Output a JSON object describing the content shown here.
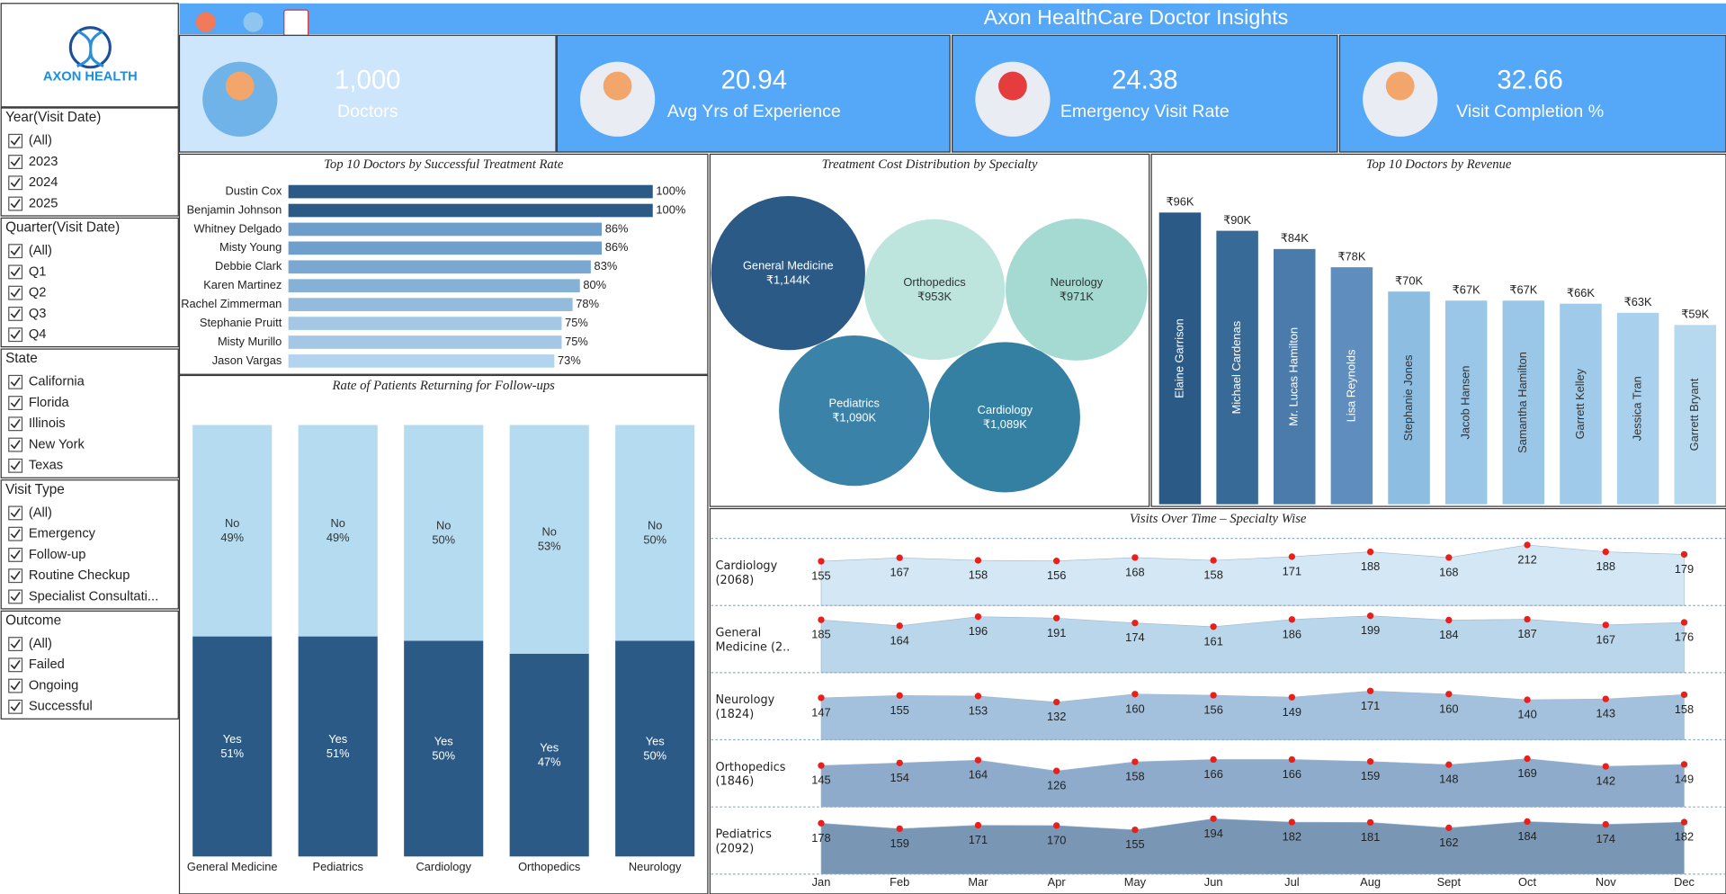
{
  "logo": {
    "text": "AXON HEALTH"
  },
  "header": {
    "title": "Axon HealthCare Doctor Insights"
  },
  "filters": [
    {
      "title": "Year(Visit Date)",
      "options": [
        "(All)",
        "2023",
        "2024",
        "2025"
      ]
    },
    {
      "title": "Quarter(Visit Date)",
      "options": [
        "(All)",
        "Q1",
        "Q2",
        "Q3",
        "Q4"
      ]
    },
    {
      "title": "State",
      "options": [
        "California",
        "Florida",
        "Illinois",
        "New York",
        "Texas"
      ]
    },
    {
      "title": "Visit Type",
      "options": [
        "(All)",
        "Emergency",
        "Follow-up",
        "Routine Checkup",
        "Specialist Consultati..."
      ]
    },
    {
      "title": "Outcome",
      "options": [
        "(All)",
        "Failed",
        "Ongoing",
        "Successful"
      ]
    }
  ],
  "kpis": [
    {
      "value": "1,000",
      "label": "Doctors"
    },
    {
      "value": "20.94",
      "label": "Avg Yrs of Experience"
    },
    {
      "value": "24.38",
      "label": "Emergency Visit Rate"
    },
    {
      "value": "32.66",
      "label": "Visit Completion %"
    }
  ],
  "chart_data": [
    {
      "type": "hbar",
      "title": "Top 10 Doctors by Successful Treatment Rate",
      "categories": [
        "Dustin Cox",
        "Benjamin Johnson",
        "Whitney Delgado",
        "Misty Young",
        "Debbie Clark",
        "Karen Martinez",
        "Rachel Zimmerman",
        "Stephanie Pruitt",
        "Misty Murillo",
        "Jason Vargas"
      ],
      "values": [
        100,
        100,
        86,
        86,
        83,
        80,
        78,
        75,
        75,
        73
      ],
      "value_labels": [
        "100%",
        "100%",
        "86%",
        "86%",
        "83%",
        "80%",
        "78%",
        "75%",
        "75%",
        "73%"
      ],
      "colors": [
        "#2b5a87",
        "#2b5a87",
        "#6d9ecb",
        "#6f9fcc",
        "#7aa8d1",
        "#86b1d7",
        "#93bbdd",
        "#a3c7e5",
        "#a3c7e5",
        "#b3d4ee"
      ]
    },
    {
      "type": "bubble",
      "title": "Treatment Cost Distribution by Specialty",
      "categories": [
        "General Medicine",
        "Orthopedics",
        "Neurology",
        "Pediatrics",
        "Cardiology"
      ],
      "values": [
        1144,
        953,
        971,
        1090,
        1089
      ],
      "value_labels": [
        "₹1,144K",
        "₹953K",
        "₹971K",
        "₹1,090K",
        "₹1,089K"
      ],
      "colors": [
        "#2b5a87",
        "#bde5de",
        "#a5dad3",
        "#3a82a8",
        "#3480a3"
      ]
    },
    {
      "type": "bar",
      "title": "Top 10 Doctors by Revenue",
      "categories": [
        "Elaine Garrison",
        "Michael Cardenas",
        "Mr. Lucas Hamilton",
        "Lisa Reynolds",
        "Stephanie Jones",
        "Jacob Hansen",
        "Samantha Hamilton",
        "Garrett Kelley",
        "Jessica Tran",
        "Garrett Bryant"
      ],
      "values": [
        96,
        90,
        84,
        78,
        70,
        67,
        67,
        66,
        63,
        59
      ],
      "value_labels": [
        "₹96K",
        "₹90K",
        "₹84K",
        "₹78K",
        "₹70K",
        "₹67K",
        "₹67K",
        "₹66K",
        "₹63K",
        "₹59K"
      ],
      "colors": [
        "#2b5a87",
        "#386a98",
        "#4a7bab",
        "#5f8dbd",
        "#8ebde2",
        "#9ac6e7",
        "#9ac6e7",
        "#a0cae9",
        "#a9d0ec",
        "#b6d9f0"
      ]
    },
    {
      "type": "stacked_bar",
      "title": "Rate of Patients Returning for Follow-ups",
      "categories": [
        "General Medicine",
        "Pediatrics",
        "Cardiology",
        "Orthopedics",
        "Neurology"
      ],
      "series": [
        {
          "name": "Yes",
          "color": "#2b5a87",
          "values": [
            51,
            51,
            50,
            47,
            50
          ],
          "value_labels": [
            "51%",
            "51%",
            "50%",
            "47%",
            "50%"
          ]
        },
        {
          "name": "No",
          "color": "#b5dbf0",
          "values": [
            49,
            49,
            50,
            53,
            50
          ],
          "value_labels": [
            "49%",
            "49%",
            "50%",
            "53%",
            "50%"
          ]
        }
      ]
    },
    {
      "type": "area_rows",
      "title": "Visits Over Time – Specialty Wise",
      "categories": [
        "Jan",
        "Feb",
        "Mar",
        "Apr",
        "May",
        "Jun",
        "Jul",
        "Aug",
        "Sept",
        "Oct",
        "Nov",
        "Dec"
      ],
      "series": [
        {
          "name": "Cardiology (2068)",
          "color": "#d3e7f5",
          "values": [
            155,
            167,
            158,
            156,
            168,
            158,
            171,
            188,
            168,
            212,
            188,
            179
          ]
        },
        {
          "name": "General Medicine (2..",
          "color": "#bad6ea",
          "values": [
            185,
            164,
            196,
            191,
            174,
            161,
            186,
            199,
            184,
            187,
            167,
            176
          ]
        },
        {
          "name": "Neurology (1824)",
          "color": "#a3c1dc",
          "values": [
            147,
            155,
            153,
            132,
            160,
            156,
            149,
            171,
            160,
            140,
            143,
            158
          ]
        },
        {
          "name": "Orthopedics (1846)",
          "color": "#8eabcb",
          "values": [
            145,
            154,
            164,
            126,
            158,
            166,
            166,
            159,
            148,
            169,
            142,
            149
          ]
        },
        {
          "name": "Pediatrics (2092)",
          "color": "#7a96b5",
          "values": [
            178,
            159,
            171,
            170,
            155,
            194,
            182,
            181,
            162,
            184,
            174,
            182
          ]
        }
      ]
    }
  ]
}
